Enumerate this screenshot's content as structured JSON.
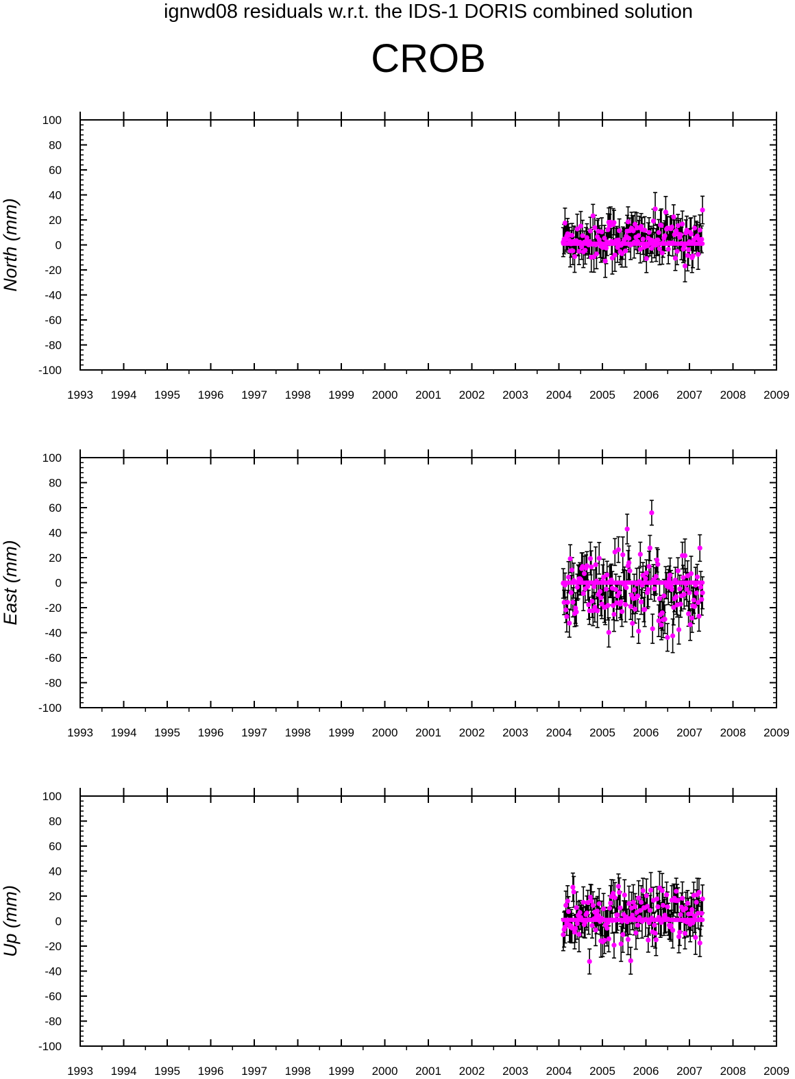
{
  "title": "ignwd08 residuals w.r.t. the IDS-1 DORIS combined solution",
  "subtitle": "CROB",
  "colors": {
    "points": "#ff00ff",
    "errorbars": "#000000",
    "axes": "#000000"
  },
  "chart_data": [
    {
      "type": "scatter",
      "ylabel": "North (mm)",
      "xlim": [
        1993,
        2009
      ],
      "ylim": [
        -100,
        100
      ],
      "xticks": [
        "1993",
        "1994",
        "1995",
        "1996",
        "1997",
        "1998",
        "1999",
        "2000",
        "2001",
        "2002",
        "2003",
        "2004",
        "2005",
        "2006",
        "2007",
        "2008",
        "2009"
      ],
      "yticks": [
        "100",
        "80",
        "60",
        "40",
        "20",
        "0",
        "-20",
        "-40",
        "-60",
        "-80",
        "-100"
      ],
      "series": [
        {
          "x_range": [
            2004.1,
            2007.3
          ],
          "count": 160,
          "mean": 5,
          "spread": 9,
          "error": 11
        }
      ]
    },
    {
      "type": "scatter",
      "ylabel": "East (mm)",
      "xlim": [
        1993,
        2009
      ],
      "ylim": [
        -100,
        100
      ],
      "xticks": [
        "1993",
        "1994",
        "1995",
        "1996",
        "1997",
        "1998",
        "1999",
        "2000",
        "2001",
        "2002",
        "2003",
        "2004",
        "2005",
        "2006",
        "2007",
        "2008",
        "2009"
      ],
      "yticks": [
        "100",
        "80",
        "60",
        "40",
        "20",
        "0",
        "-20",
        "-40",
        "-60",
        "-80",
        "-100"
      ],
      "series": [
        {
          "x_range": [
            2004.1,
            2007.3
          ],
          "count": 160,
          "mean": -5,
          "spread": 16,
          "error": 12
        }
      ]
    },
    {
      "type": "scatter",
      "ylabel": "Up (mm)",
      "xlim": [
        1993,
        2009
      ],
      "ylim": [
        -100,
        100
      ],
      "xticks": [
        "1993",
        "1994",
        "1995",
        "1996",
        "1997",
        "1998",
        "1999",
        "2000",
        "2001",
        "2002",
        "2003",
        "2004",
        "2005",
        "2006",
        "2007",
        "2008",
        "2009"
      ],
      "yticks": [
        "100",
        "80",
        "60",
        "40",
        "20",
        "0",
        "-20",
        "-40",
        "-60",
        "-80",
        "-100"
      ],
      "series": [
        {
          "x_range": [
            2004.1,
            2007.3
          ],
          "count": 160,
          "mean": 5,
          "spread": 11,
          "error": 12
        }
      ]
    }
  ]
}
